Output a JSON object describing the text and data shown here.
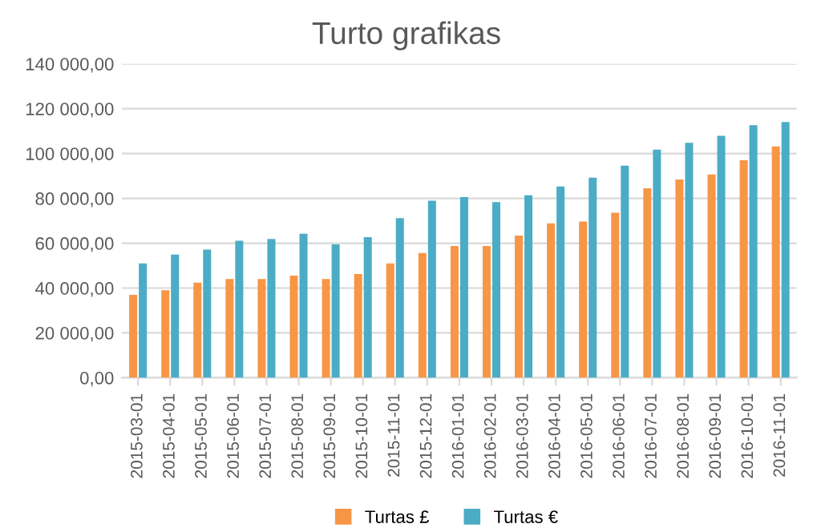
{
  "chart_data": {
    "type": "bar",
    "title": "Turto grafikas",
    "categories": [
      "2015-03-01",
      "2015-04-01",
      "2015-05-01",
      "2015-06-01",
      "2015-07-01",
      "2015-08-01",
      "2015-09-01",
      "2015-10-01",
      "2015-11-01",
      "2015-12-01",
      "2016-01-01",
      "2016-02-01",
      "2016-03-01",
      "2016-04-01",
      "2016-05-01",
      "2016-06-01",
      "2016-07-01",
      "2016-08-01",
      "2016-09-01",
      "2016-10-01",
      "2016-11-01"
    ],
    "series": [
      {
        "name": "Turtas £",
        "color": "#f79646",
        "values": [
          37000,
          39000,
          42400,
          44000,
          44000,
          45500,
          44000,
          46300,
          51000,
          55600,
          58800,
          58800,
          63400,
          68900,
          69700,
          73600,
          84500,
          88400,
          90700,
          97000,
          103200
        ]
      },
      {
        "name": "Turtas €",
        "color": "#4bacc6",
        "values": [
          51000,
          54900,
          57200,
          61100,
          61900,
          64200,
          59500,
          62700,
          71200,
          79000,
          80600,
          78300,
          81400,
          85300,
          89200,
          94600,
          101700,
          104800,
          107900,
          112600,
          114100
        ]
      }
    ],
    "ylim": [
      0,
      140000
    ],
    "yticks": [
      {
        "value": 0,
        "label": "0,00"
      },
      {
        "value": 20000,
        "label": "20 000,00"
      },
      {
        "value": 40000,
        "label": "40 000,00"
      },
      {
        "value": 60000,
        "label": "60 000,00"
      },
      {
        "value": 80000,
        "label": "80 000,00"
      },
      {
        "value": 100000,
        "label": "100 000,00"
      },
      {
        "value": 120000,
        "label": "120 000,00"
      },
      {
        "value": 140000,
        "label": "140 000,00"
      }
    ],
    "grid": "y",
    "legend": "bottom"
  }
}
